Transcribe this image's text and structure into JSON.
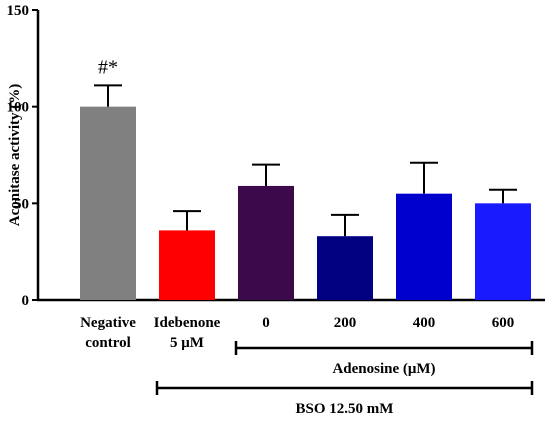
{
  "chart_data": {
    "type": "bar",
    "ylabel": "Aconitase activity (%)",
    "ylim": [
      0,
      150
    ],
    "yticks": [
      0,
      50,
      100,
      150
    ],
    "grid": false,
    "categories": [
      [
        "Negative",
        "control"
      ],
      [
        "Idebenone",
        "5 μM"
      ],
      [
        "0"
      ],
      [
        "200"
      ],
      [
        "400"
      ],
      [
        "600"
      ]
    ],
    "values": [
      100,
      36,
      59,
      33,
      55,
      50
    ],
    "errors": [
      11,
      10,
      11,
      11,
      16,
      7
    ],
    "colors": [
      "#808080",
      "#ff0000",
      "#3c0a4b",
      "#000080",
      "#0000cd",
      "#1a1aff"
    ],
    "annotations": [
      {
        "bar_index": 0,
        "text": "#*"
      }
    ],
    "groupings": [
      {
        "label": "Adenosine (μM)",
        "from_bar": 2,
        "to_bar": 5
      },
      {
        "label": "BSO 12.50 mM",
        "from_bar": 1,
        "to_bar": 5
      }
    ]
  }
}
